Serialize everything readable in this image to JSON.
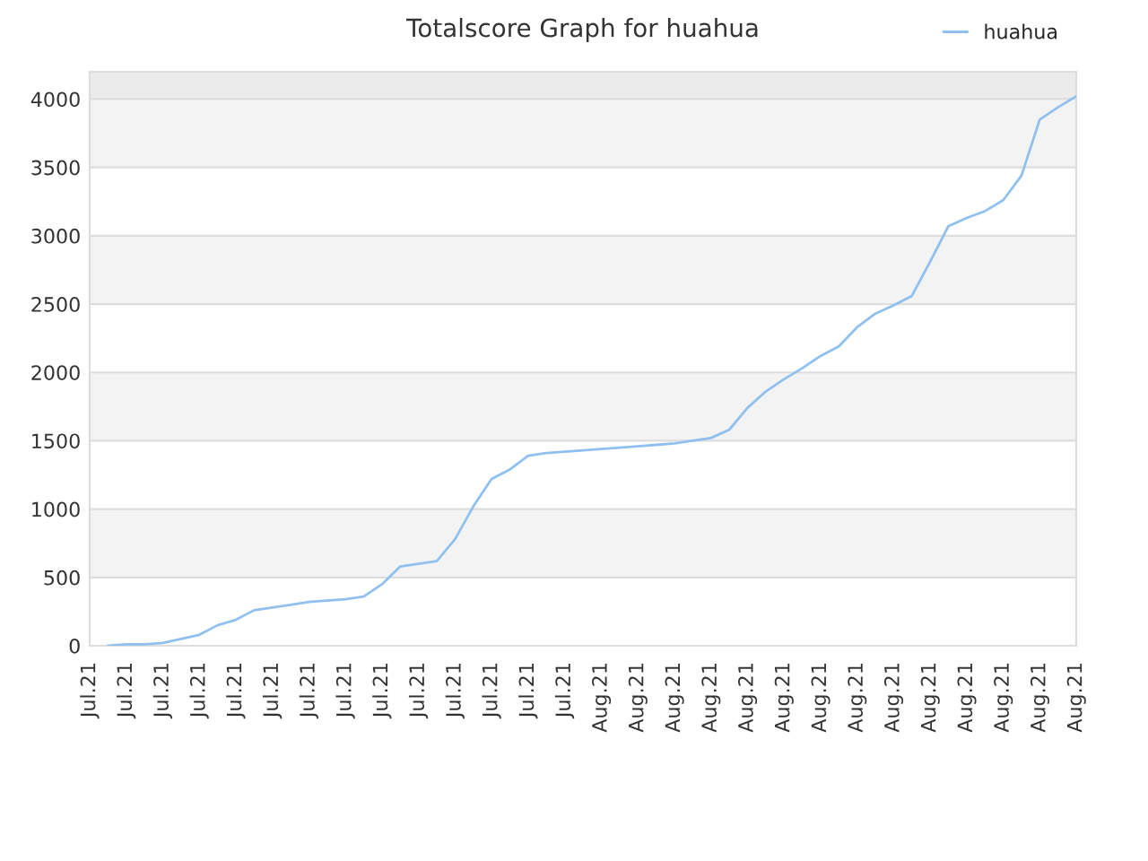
{
  "chart_data": {
    "type": "line",
    "title": "Totalscore Graph for huahua",
    "categories": [
      "Jul.21",
      null,
      "Jul.21",
      null,
      "Jul.21",
      null,
      "Jul.21",
      null,
      "Jul.21",
      null,
      "Jul.21",
      null,
      "Jul.21",
      null,
      "Jul.21",
      null,
      "Jul.21",
      null,
      "Jul.21",
      null,
      "Jul.21",
      null,
      "Jul.21",
      null,
      "Jul.21",
      null,
      "Jul.21",
      null,
      "Aug.21",
      null,
      "Aug.21",
      null,
      "Aug.21",
      null,
      "Aug.21",
      null,
      "Aug.21",
      null,
      "Aug.21",
      null,
      "Aug.21",
      null,
      "Aug.21",
      null,
      "Aug.21",
      null,
      "Aug.21",
      null,
      "Aug.21",
      null,
      "Aug.21",
      null,
      "Aug.21",
      null,
      "Aug.21"
    ],
    "series": [
      {
        "name": "huahua",
        "color": "#90c0f0",
        "values": [
          null,
          0,
          10,
          10,
          20,
          50,
          80,
          150,
          190,
          260,
          280,
          300,
          320,
          330,
          340,
          360,
          450,
          580,
          600,
          620,
          780,
          1020,
          1220,
          1290,
          1390,
          1410,
          1420,
          1430,
          1440,
          1450,
          1460,
          1470,
          1480,
          1500,
          1520,
          1580,
          1740,
          1860,
          1950,
          2030,
          2120,
          2190,
          2330,
          2430,
          2490,
          2560,
          2810,
          3070,
          3130,
          3180,
          3260,
          3440,
          3850,
          3940,
          4020
        ]
      }
    ],
    "ylim": [
      0,
      4200
    ],
    "yticks": [
      0,
      500,
      1000,
      1500,
      2000,
      2500,
      3000,
      3500,
      4000
    ],
    "bands": [
      {
        "axis": "y",
        "from": 500,
        "to": 1000,
        "color": "#f3f3f3"
      },
      {
        "axis": "y",
        "from": 1500,
        "to": 2000,
        "color": "#f3f3f3"
      },
      {
        "axis": "y",
        "from": 2500,
        "to": 3000,
        "color": "#f3f3f3"
      },
      {
        "axis": "y",
        "from": 3500,
        "to": 4000,
        "color": "#f3f3f3"
      },
      {
        "axis": "y",
        "from": 4000,
        "to": 4200,
        "color": "#ebebeb"
      }
    ],
    "grid": "y",
    "legend": "top right",
    "marker": "none",
    "line_style": "solid"
  }
}
